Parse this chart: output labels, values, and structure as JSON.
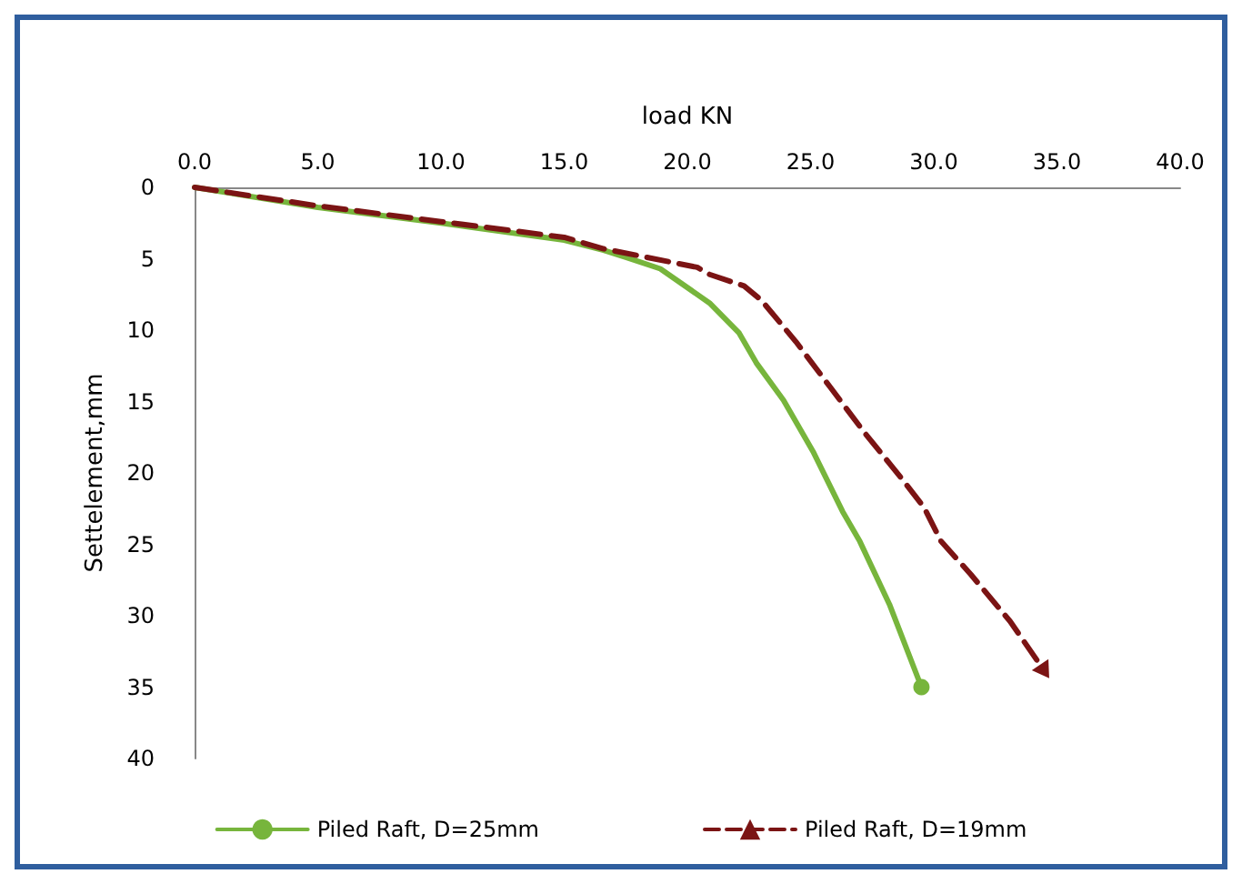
{
  "chart_data": {
    "type": "line",
    "xlabel": "load KN",
    "ylabel": "Settelement,mm",
    "xlim": [
      0,
      40
    ],
    "xticks": [
      {
        "value": 0,
        "label": "0.0"
      },
      {
        "value": 5,
        "label": "5.0"
      },
      {
        "value": 10,
        "label": "10.0"
      },
      {
        "value": 15,
        "label": "15.0"
      },
      {
        "value": 20,
        "label": "20.0"
      },
      {
        "value": 25,
        "label": "25.0"
      },
      {
        "value": 30,
        "label": "30.0"
      },
      {
        "value": 35,
        "label": "35.0"
      },
      {
        "value": 40,
        "label": "40.0"
      }
    ],
    "ylim": [
      40,
      0
    ],
    "yticks": [
      0,
      5,
      10,
      15,
      20,
      25,
      30,
      35,
      40
    ],
    "grid": false,
    "legend": "bottom",
    "series": [
      {
        "name": "Piled Raft, D=25mm",
        "color": "#77b53c",
        "line_style": "solid",
        "x": [
          0,
          5,
          10,
          15,
          16.6,
          17.5,
          18.9,
          20.9,
          22.1,
          22.8,
          23.9,
          25.1,
          26.3,
          27.0,
          28.2,
          29.5
        ],
        "values": [
          0,
          1.4,
          2.5,
          3.7,
          4.4,
          4.9,
          5.7,
          8.1,
          10.2,
          12.3,
          14.9,
          18.5,
          22.7,
          24.8,
          29.2,
          35.0
        ]
      },
      {
        "name": "Piled Raft, D=19mm",
        "color": "#7b1414",
        "line_style": "dashed",
        "x": [
          0,
          5,
          10,
          15,
          16.6,
          20.4,
          20.9,
          22.3,
          23.0,
          24.4,
          25.8,
          27.2,
          28.7,
          29.6,
          30.3,
          31.5,
          33.1,
          34.5
        ],
        "values": [
          0,
          1.3,
          2.4,
          3.5,
          4.3,
          5.6,
          6.1,
          6.9,
          7.9,
          10.8,
          14.0,
          17.2,
          20.4,
          22.4,
          24.8,
          27.1,
          30.4,
          33.9
        ]
      }
    ]
  }
}
